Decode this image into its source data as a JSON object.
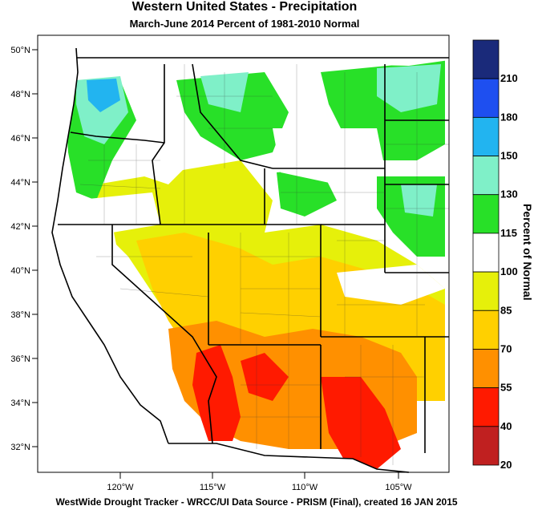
{
  "header": {
    "title": "Western United States - Precipitation",
    "subtitle": "March-June 2014  Percent of 1981-2010 Normal"
  },
  "footer": "WestWide Drought Tracker - WRCC/UI  Data Source - PRISM (Final), created 16 JAN 2015",
  "axes": {
    "lat_labels": [
      "50°N",
      "48°N",
      "46°N",
      "44°N",
      "42°N",
      "40°N",
      "38°N",
      "36°N",
      "34°N",
      "32°N"
    ],
    "lon_labels": [
      "120°W",
      "115°W",
      "110°W",
      "105°W"
    ]
  },
  "colorbar": {
    "title": "Percent of Normal",
    "labels": [
      "210",
      "180",
      "150",
      "130",
      "115",
      "100",
      "85",
      "70",
      "55",
      "40",
      "20"
    ],
    "colors": [
      "#1a2a7a",
      "#1e4ff0",
      "#22b4f0",
      "#7ff0c8",
      "#28e028",
      "#ffffff",
      "#e6f00a",
      "#ffd000",
      "#ff9000",
      "#ff1a00",
      "#c02020"
    ]
  }
}
